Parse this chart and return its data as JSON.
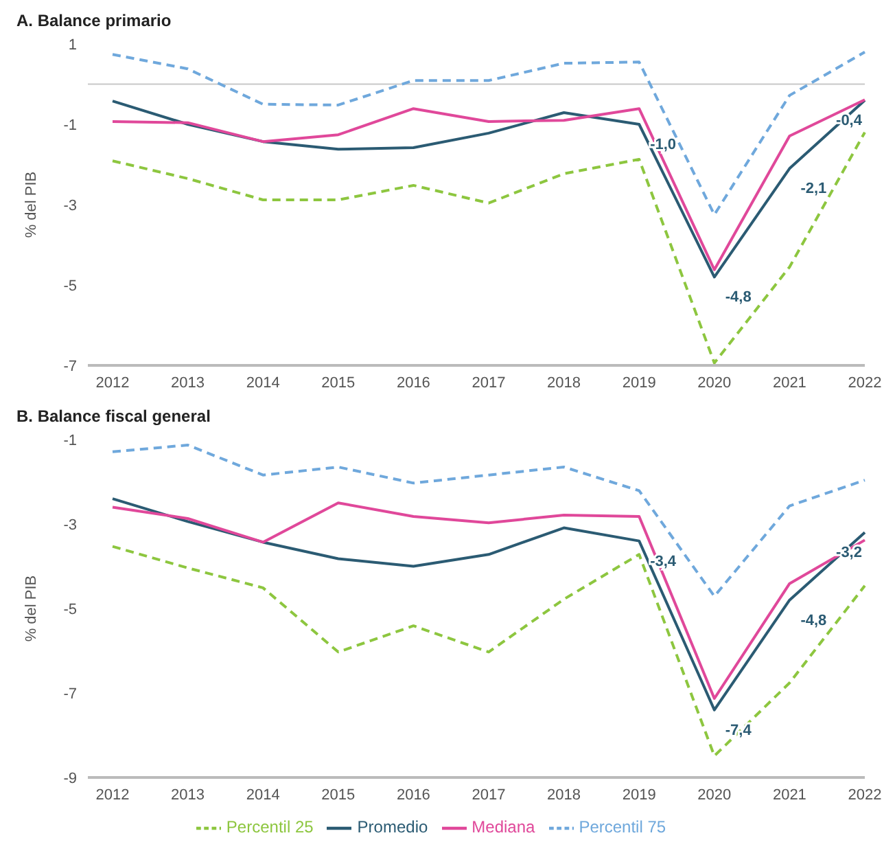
{
  "chart_data": [
    {
      "type": "line",
      "title": "A. Balance primario",
      "ylabel": "% del PIB",
      "categories": [
        "2012",
        "2013",
        "2014",
        "2015",
        "2016",
        "2017",
        "2018",
        "2019",
        "2020",
        "2021",
        "2022"
      ],
      "ylim": [
        -7,
        1
      ],
      "yticks": [
        1,
        -1,
        -3,
        -5,
        -7
      ],
      "grid": false,
      "legend": false,
      "marker": "none",
      "ref_lines": [
        {
          "axis": "y",
          "value": 0,
          "color": "#c8c8c8"
        }
      ],
      "series": [
        {
          "color": "#8dc63f",
          "line_style": "dashed",
          "values": [
            -1.91,
            -2.35,
            -2.88,
            -2.88,
            -2.52,
            -2.96,
            -2.23,
            -1.87,
            -6.94,
            -4.55,
            -1.2
          ]
        },
        {
          "color": "#2b5b73",
          "line_style": "solid",
          "values": [
            -0.42,
            -1.0,
            -1.43,
            -1.62,
            -1.58,
            -1.22,
            -0.71,
            -1.0,
            -4.8,
            -2.1,
            -0.4
          ],
          "value_labels": [
            null,
            null,
            null,
            null,
            null,
            null,
            null,
            "-1,0",
            "-4,8",
            "-2,1",
            "-0,4"
          ]
        },
        {
          "color": "#e0489a",
          "line_style": "solid",
          "values": [
            -0.93,
            -0.96,
            -1.43,
            -1.26,
            -0.61,
            -0.93,
            -0.9,
            -0.61,
            -4.62,
            -1.29,
            -0.39
          ]
        },
        {
          "color": "#6fa8dc",
          "line_style": "dashed",
          "values": [
            0.74,
            0.38,
            -0.5,
            -0.52,
            0.09,
            0.09,
            0.52,
            0.55,
            -3.25,
            -0.28,
            0.8
          ]
        }
      ]
    },
    {
      "type": "line",
      "title": "B. Balance fiscal general",
      "ylabel": "% del PIB",
      "categories": [
        "2012",
        "2013",
        "2014",
        "2015",
        "2016",
        "2017",
        "2018",
        "2019",
        "2020",
        "2021",
        "2022"
      ],
      "ylim": [
        -9,
        -1
      ],
      "yticks": [
        -1,
        -3,
        -5,
        -7,
        -9
      ],
      "grid": false,
      "legend": "bottom",
      "marker": "none",
      "series": [
        {
          "name": "Percentil 25",
          "color": "#8dc63f",
          "line_style": "dashed",
          "values": [
            -3.53,
            -4.04,
            -4.51,
            -6.03,
            -5.41,
            -6.03,
            -4.78,
            -3.72,
            -8.49,
            -6.76,
            -4.46
          ]
        },
        {
          "name": "Promedio",
          "color": "#2b5b73",
          "line_style": "solid",
          "values": [
            -2.4,
            -2.94,
            -3.43,
            -3.82,
            -4.0,
            -3.72,
            -3.09,
            -3.4,
            -7.4,
            -4.8,
            -3.2
          ],
          "value_labels": [
            null,
            null,
            null,
            null,
            null,
            null,
            null,
            "-3,4",
            "-7,4",
            "-4,8",
            "-3,2"
          ]
        },
        {
          "name": "Mediana",
          "color": "#e0489a",
          "line_style": "solid",
          "values": [
            -2.6,
            -2.87,
            -3.43,
            -2.5,
            -2.82,
            -2.97,
            -2.79,
            -2.82,
            -7.13,
            -4.41,
            -3.38
          ]
        },
        {
          "name": "Percentil 75",
          "color": "#6fa8dc",
          "line_style": "dashed",
          "values": [
            -1.29,
            -1.13,
            -1.84,
            -1.65,
            -2.03,
            -1.84,
            -1.65,
            -2.21,
            -4.71,
            -2.57,
            -1.96
          ]
        }
      ]
    }
  ]
}
